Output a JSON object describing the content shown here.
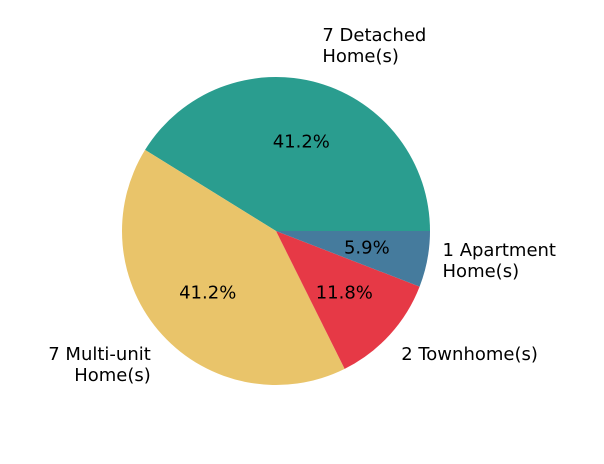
{
  "chart_data": {
    "type": "pie",
    "start_angle_deg": 0,
    "direction": "counterclockwise",
    "slices": [
      {
        "label_lines": [
          "7 Detached",
          "Home(s)"
        ],
        "value": 7,
        "pct_label": "41.2%",
        "color": "#2a9d8f"
      },
      {
        "label_lines": [
          "7 Multi-unit",
          "Home(s)"
        ],
        "value": 7,
        "pct_label": "41.2%",
        "color": "#e9c46a"
      },
      {
        "label_lines": [
          "2 Townhome(s)"
        ],
        "value": 2,
        "pct_label": "11.8%",
        "color": "#e63946"
      },
      {
        "label_lines": [
          "1 Apartment",
          "Home(s)"
        ],
        "value": 1,
        "pct_label": "5.9%",
        "color": "#457b9d"
      }
    ]
  }
}
